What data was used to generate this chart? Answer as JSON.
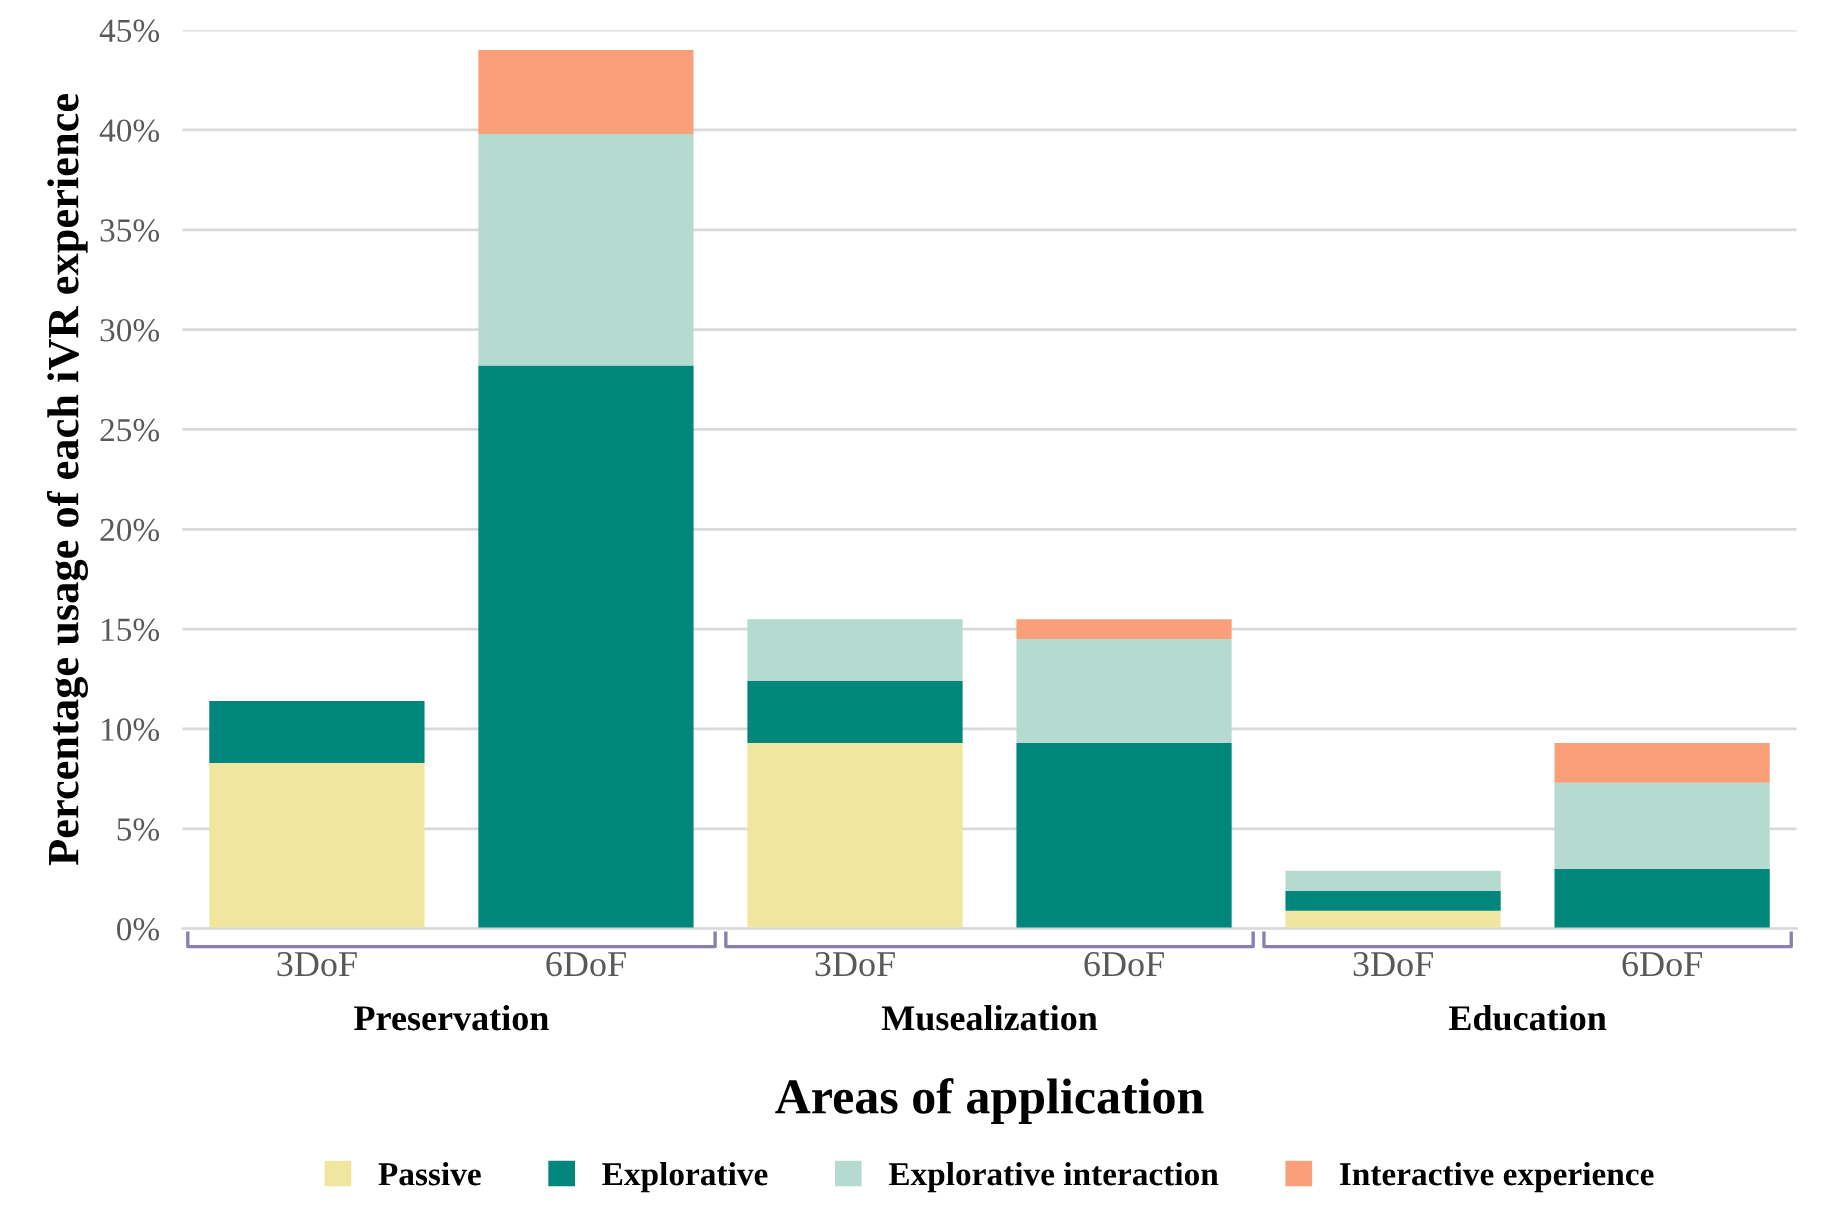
{
  "chart_data": {
    "type": "bar",
    "stacked": true,
    "xlabel": "Areas of application",
    "ylabel": "Percentage usage of each iVR experience",
    "categories": [
      "3DoF",
      "6DoF",
      "3DoF",
      "6DoF",
      "3DoF",
      "6DoF"
    ],
    "series": [
      {
        "name": "Passive",
        "color": "#f0e6a0",
        "values": [
          8.3,
          0,
          9.3,
          0,
          0.9,
          0
        ]
      },
      {
        "name": "Explorative",
        "color": "#00867a",
        "values": [
          3.1,
          28.2,
          3.1,
          9.3,
          1.0,
          3.0
        ]
      },
      {
        "name": "Explorative interaction",
        "color": "#b5dbd0",
        "values": [
          0,
          11.6,
          3.1,
          5.2,
          1.0,
          4.3
        ]
      },
      {
        "name": "Interactive experience",
        "color": "#f99f7a",
        "values": [
          0,
          4.2,
          0,
          1.0,
          0,
          2.0
        ]
      }
    ],
    "annotations": [
      "Preservation",
      "Musealization",
      "Education"
    ],
    "ylim": [
      0,
      45
    ],
    "yticks": [
      {
        "value": 0,
        "label": "0%"
      },
      {
        "value": 5,
        "label": "5%"
      },
      {
        "value": 10,
        "label": "10%"
      },
      {
        "value": 15,
        "label": "15%"
      },
      {
        "value": 20,
        "label": "20%"
      },
      {
        "value": 25,
        "label": "25%"
      },
      {
        "value": 30,
        "label": "30%"
      },
      {
        "value": 35,
        "label": "35%"
      },
      {
        "value": 40,
        "label": "40%"
      },
      {
        "value": 45,
        "label": "45%"
      }
    ],
    "grid": "y",
    "legend": "bottom"
  }
}
